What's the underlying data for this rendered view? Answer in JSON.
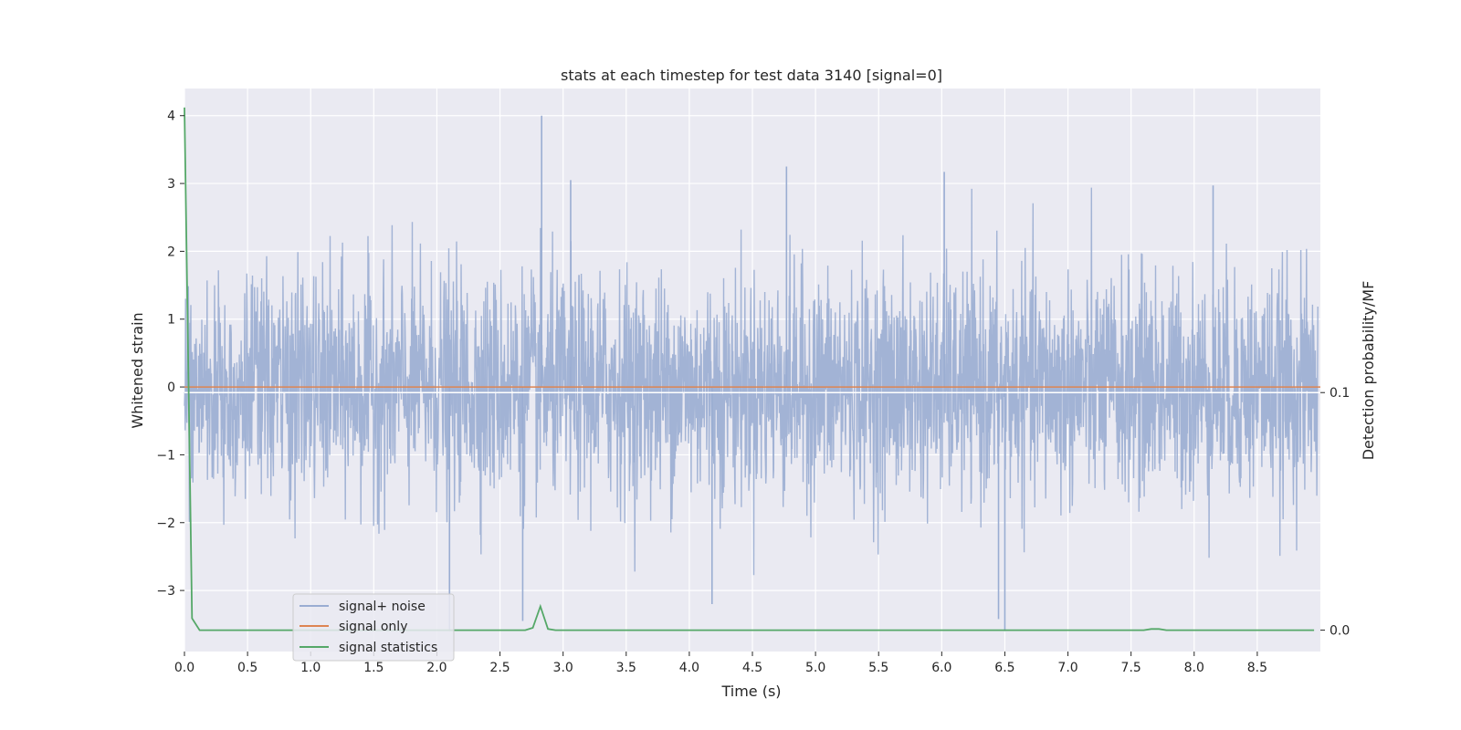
{
  "chart_data": {
    "type": "line",
    "title": "stats at each timestep for test data 3140 [signal=0]",
    "xlabel": "Time (s)",
    "ylabel": "Whitened strain",
    "y2label": "Detection probability/MF",
    "xlim": [
      0.0,
      9.0
    ],
    "ylim": [
      -3.9,
      4.4
    ],
    "y2lim": [
      -0.009,
      0.228
    ],
    "x_ticks": [
      "0.0",
      "0.5",
      "1.0",
      "1.5",
      "2.0",
      "2.5",
      "3.0",
      "3.5",
      "4.0",
      "4.5",
      "5.0",
      "5.5",
      "6.0",
      "6.5",
      "7.0",
      "7.5",
      "8.0",
      "8.5"
    ],
    "y_ticks": [
      "4",
      "3",
      "2",
      "1",
      "0",
      "−1",
      "−2",
      "−3"
    ],
    "y2_ticks": [
      "0.1",
      "0.0"
    ],
    "grid": true,
    "legend_position": "lower-left",
    "series": [
      {
        "name": "signal+ noise",
        "color": "#9aadd2",
        "kind": "noise",
        "approx_range": [
          -3.6,
          4.0
        ],
        "notable_peaks": [
          [
            2.83,
            4.0
          ],
          [
            4.77,
            3.25
          ],
          [
            6.02,
            3.17
          ],
          [
            8.15,
            2.97
          ],
          [
            3.06,
            3.05
          ],
          [
            2.1,
            -3.6
          ],
          [
            6.5,
            -3.6
          ],
          [
            6.45,
            -3.42
          ],
          [
            2.68,
            -3.45
          ],
          [
            4.18,
            -3.2
          ]
        ]
      },
      {
        "name": "signal only",
        "color": "#dd8452",
        "x": [
          0.0,
          9.0
        ],
        "y": [
          0.0,
          0.0
        ]
      },
      {
        "name": "signal statistics",
        "color": "#55a868",
        "axis": "right",
        "x": [
          0.0,
          0.06,
          0.12,
          2.7,
          2.76,
          2.82,
          2.88,
          2.94,
          7.6,
          7.66,
          7.72,
          7.78,
          8.95
        ],
        "y": [
          0.22,
          0.005,
          0.0,
          0.0,
          0.001,
          0.01,
          0.0005,
          0.0,
          0.0,
          0.0005,
          0.0005,
          0.0,
          0.0
        ]
      }
    ],
    "reference_line": {
      "axis": "right",
      "y": 0.1,
      "color": "#ffffff"
    }
  }
}
